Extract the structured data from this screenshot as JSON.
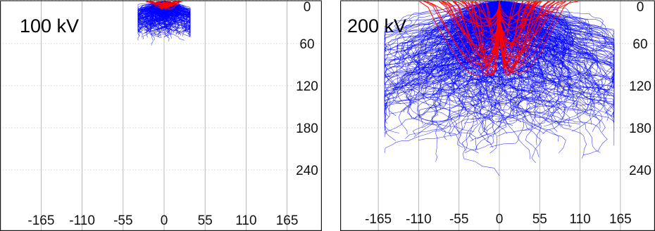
{
  "chart_data": [
    {
      "type": "scatter",
      "title": "100 kV",
      "x_ticks": [
        "-165",
        "-110",
        "-55",
        "0",
        "55",
        "110",
        "165"
      ],
      "y_ticks": [
        "0",
        "60",
        "120",
        "180",
        "240"
      ],
      "xlim": [
        -225,
        225
      ],
      "ylim": [
        0,
        290
      ],
      "grid": true,
      "colors": {
        "primary_tracks": "#0000ff",
        "backscatter_tracks": "#ff0000"
      },
      "series": [
        {
          "name": "",
          "color": "#0000ff",
          "spread_x": 28,
          "max_depth": 65,
          "count": 450
        },
        {
          "name": "",
          "color": "#ff0000",
          "spread_x": 25,
          "max_depth": 12,
          "count": 25
        }
      ]
    },
    {
      "type": "scatter",
      "title": "200 kV",
      "x_ticks": [
        "-165",
        "-110",
        "-55",
        "0",
        "55",
        "110",
        "165"
      ],
      "y_ticks": [
        "0",
        "60",
        "120",
        "180",
        "240"
      ],
      "xlim": [
        -225,
        225
      ],
      "ylim": [
        0,
        290
      ],
      "grid": true,
      "colors": {
        "primary_tracks": "#0000ff",
        "backscatter_tracks": "#ff0000"
      },
      "series": [
        {
          "name": "",
          "color": "#0000ff",
          "spread_x": 125,
          "max_depth": 255,
          "count": 650
        },
        {
          "name": "",
          "color": "#ff0000",
          "spread_x": 110,
          "max_depth": 110,
          "count": 60
        }
      ]
    }
  ]
}
